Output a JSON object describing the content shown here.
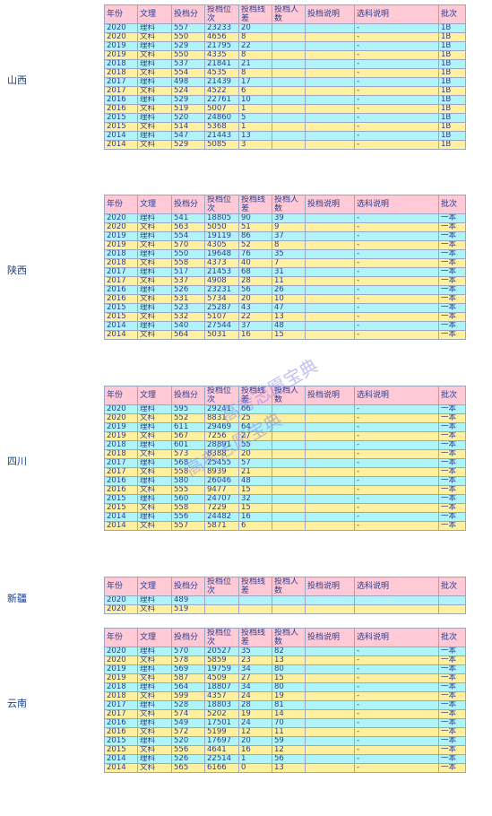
{
  "columns": [
    "年份",
    "文理",
    "投档分",
    "投档位次",
    "投档线差",
    "投档人数",
    "投档说明",
    "选科说明",
    "批次"
  ],
  "watermarks": [
    "高考志愿宝典",
    "高考志愿宝典"
  ],
  "blocks": [
    {
      "province": "山西",
      "rows": [
        [
          "2020",
          "理科",
          "557",
          "23233",
          "20",
          "",
          "",
          "-",
          "1B"
        ],
        [
          "2020",
          "文科",
          "550",
          "4656",
          "8",
          "",
          "",
          "-",
          "1B"
        ],
        [
          "2019",
          "理科",
          "529",
          "21795",
          "22",
          "",
          "",
          "-",
          "1B"
        ],
        [
          "2019",
          "文科",
          "550",
          "4335",
          "8",
          "",
          "",
          "-",
          "1B"
        ],
        [
          "2018",
          "理科",
          "537",
          "21841",
          "21",
          "",
          "",
          "-",
          "1B"
        ],
        [
          "2018",
          "文科",
          "554",
          "4535",
          "8",
          "",
          "",
          "-",
          "1B"
        ],
        [
          "2017",
          "理科",
          "498",
          "21439",
          "17",
          "",
          "",
          "-",
          "1B"
        ],
        [
          "2017",
          "文科",
          "524",
          "4522",
          "6",
          "",
          "",
          "-",
          "1B"
        ],
        [
          "2016",
          "理科",
          "529",
          "22761",
          "10",
          "",
          "",
          "-",
          "1B"
        ],
        [
          "2016",
          "文科",
          "519",
          "5007",
          "1",
          "",
          "",
          "-",
          "1B"
        ],
        [
          "2015",
          "理科",
          "520",
          "24860",
          "5",
          "",
          "",
          "-",
          "1B"
        ],
        [
          "2015",
          "文科",
          "514",
          "5368",
          "1",
          "",
          "",
          "-",
          "1B"
        ],
        [
          "2014",
          "理科",
          "547",
          "21443",
          "13",
          "",
          "",
          "-",
          "1B"
        ],
        [
          "2014",
          "文科",
          "529",
          "5085",
          "3",
          "",
          "",
          "-",
          "1B"
        ]
      ]
    },
    {
      "province": "陕西",
      "rows": [
        [
          "2020",
          "理科",
          "541",
          "18805",
          "90",
          "39",
          "",
          "-",
          "一本"
        ],
        [
          "2020",
          "文科",
          "563",
          "5050",
          "51",
          "9",
          "",
          "-",
          "一本"
        ],
        [
          "2019",
          "理科",
          "554",
          "19119",
          "86",
          "37",
          "",
          "-",
          "一本"
        ],
        [
          "2019",
          "文科",
          "570",
          "4305",
          "52",
          "8",
          "",
          "-",
          "一本"
        ],
        [
          "2018",
          "理科",
          "550",
          "19648",
          "76",
          "35",
          "",
          "-",
          "一本"
        ],
        [
          "2018",
          "文科",
          "558",
          "4373",
          "40",
          "7",
          "",
          "-",
          "一本"
        ],
        [
          "2017",
          "理科",
          "517",
          "21453",
          "68",
          "31",
          "",
          "-",
          "一本"
        ],
        [
          "2017",
          "文科",
          "537",
          "4908",
          "28",
          "11",
          "",
          "-",
          "一本"
        ],
        [
          "2016",
          "理科",
          "526",
          "23231",
          "56",
          "26",
          "",
          "-",
          "一本"
        ],
        [
          "2016",
          "文科",
          "531",
          "5734",
          "20",
          "10",
          "",
          "-",
          "一本"
        ],
        [
          "2015",
          "理科",
          "523",
          "25287",
          "43",
          "47",
          "",
          "-",
          "一本"
        ],
        [
          "2015",
          "文科",
          "532",
          "5107",
          "22",
          "13",
          "",
          "-",
          "一本"
        ],
        [
          "2014",
          "理科",
          "540",
          "27544",
          "37",
          "48",
          "",
          "-",
          "一本"
        ],
        [
          "2014",
          "文科",
          "564",
          "5031",
          "16",
          "15",
          "",
          "-",
          "一本"
        ]
      ]
    },
    {
      "province": "四川",
      "rows": [
        [
          "2020",
          "理科",
          "595",
          "29241",
          "66",
          "",
          "",
          "-",
          "一本"
        ],
        [
          "2020",
          "文科",
          "552",
          "8831",
          "25",
          "",
          "",
          "-",
          "一本"
        ],
        [
          "2019",
          "理科",
          "611",
          "29469",
          "64",
          "",
          "",
          "-",
          "一本"
        ],
        [
          "2019",
          "文科",
          "567",
          "7256",
          "27",
          "",
          "",
          "-",
          "一本"
        ],
        [
          "2018",
          "理科",
          "601",
          "28891",
          "55",
          "",
          "",
          "-",
          "一本"
        ],
        [
          "2018",
          "文科",
          "573",
          "8388",
          "20",
          "",
          "",
          "-",
          "一本"
        ],
        [
          "2017",
          "理科",
          "568",
          "25455",
          "57",
          "",
          "",
          "-",
          "一本"
        ],
        [
          "2017",
          "文科",
          "558",
          "8939",
          "21",
          "",
          "",
          "-",
          "一本"
        ],
        [
          "2016",
          "理科",
          "580",
          "26046",
          "48",
          "",
          "",
          "-",
          "一本"
        ],
        [
          "2016",
          "文科",
          "555",
          "9477",
          "15",
          "",
          "",
          "-",
          "一本"
        ],
        [
          "2015",
          "理科",
          "560",
          "24707",
          "32",
          "",
          "",
          "-",
          "一本"
        ],
        [
          "2015",
          "文科",
          "558",
          "7229",
          "15",
          "",
          "",
          "-",
          "一本"
        ],
        [
          "2014",
          "理科",
          "556",
          "24482",
          "16",
          "",
          "",
          "-",
          "一本"
        ],
        [
          "2014",
          "文科",
          "557",
          "5871",
          "6",
          "",
          "",
          "-",
          "一本"
        ]
      ]
    },
    {
      "province": "新疆",
      "rows": [
        [
          "2020",
          "理科",
          "489",
          "",
          "",
          "",
          "",
          "",
          ""
        ],
        [
          "2020",
          "文科",
          "519",
          "",
          "",
          "",
          "",
          "",
          ""
        ]
      ]
    },
    {
      "province": "云南",
      "rows": [
        [
          "2020",
          "理科",
          "570",
          "20527",
          "35",
          "82",
          "",
          "-",
          "一本"
        ],
        [
          "2020",
          "文科",
          "578",
          "5859",
          "23",
          "13",
          "",
          "-",
          "一本"
        ],
        [
          "2019",
          "理科",
          "569",
          "19759",
          "34",
          "80",
          "",
          "-",
          "一本"
        ],
        [
          "2019",
          "文科",
          "587",
          "4509",
          "27",
          "15",
          "",
          "-",
          "一本"
        ],
        [
          "2018",
          "理科",
          "564",
          "18807",
          "34",
          "80",
          "",
          "-",
          "一本"
        ],
        [
          "2018",
          "文科",
          "599",
          "4357",
          "24",
          "19",
          "",
          "-",
          "一本"
        ],
        [
          "2017",
          "理科",
          "528",
          "18803",
          "28",
          "81",
          "",
          "-",
          "一本"
        ],
        [
          "2017",
          "文科",
          "574",
          "5202",
          "19",
          "14",
          "",
          "-",
          "一本"
        ],
        [
          "2016",
          "理科",
          "549",
          "17501",
          "24",
          "70",
          "",
          "-",
          "一本"
        ],
        [
          "2016",
          "文科",
          "572",
          "5199",
          "12",
          "11",
          "",
          "-",
          "一本"
        ],
        [
          "2015",
          "理科",
          "520",
          "17697",
          "20",
          "59",
          "",
          "-",
          "一本"
        ],
        [
          "2015",
          "文科",
          "556",
          "4641",
          "16",
          "12",
          "",
          "-",
          "一本"
        ],
        [
          "2014",
          "理科",
          "526",
          "22514",
          "1",
          "56",
          "",
          "-",
          "一本"
        ],
        [
          "2014",
          "文科",
          "565",
          "6166",
          "0",
          "13",
          "",
          "-",
          "一本"
        ]
      ]
    }
  ]
}
